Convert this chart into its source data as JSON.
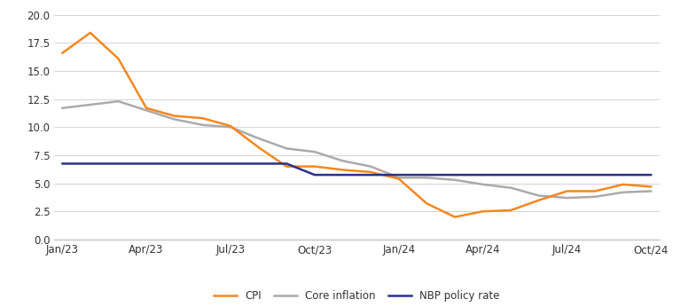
{
  "x_labels": [
    "Jan/23",
    "Apr/23",
    "Jul/23",
    "Oct/23",
    "Jan/24",
    "Apr/24",
    "Jul/24",
    "Oct/24"
  ],
  "x_ticks_pos": [
    0,
    3,
    6,
    9,
    12,
    15,
    18,
    21
  ],
  "cpi": {
    "x": [
      0,
      1,
      2,
      3,
      4,
      5,
      6,
      7,
      8,
      9,
      10,
      11,
      12,
      13,
      14,
      15,
      16,
      17,
      18,
      19,
      20,
      21
    ],
    "y": [
      16.6,
      18.4,
      16.1,
      11.7,
      11.0,
      10.8,
      10.1,
      8.2,
      6.5,
      6.5,
      6.2,
      6.0,
      5.4,
      3.2,
      2.0,
      2.5,
      2.6,
      3.5,
      4.3,
      4.3,
      4.9,
      4.7
    ],
    "color": "#F5871F",
    "label": "CPI",
    "linewidth": 1.8
  },
  "core": {
    "x": [
      0,
      1,
      2,
      3,
      4,
      5,
      6,
      7,
      8,
      9,
      10,
      11,
      12,
      13,
      14,
      15,
      16,
      17,
      18,
      19,
      20,
      21
    ],
    "y": [
      11.7,
      12.0,
      12.3,
      11.5,
      10.7,
      10.2,
      10.0,
      9.0,
      8.1,
      7.8,
      7.0,
      6.5,
      5.5,
      5.5,
      5.3,
      4.9,
      4.6,
      3.9,
      3.7,
      3.8,
      4.2,
      4.3
    ],
    "color": "#aaaaaa",
    "label": "Core inflation",
    "linewidth": 1.8
  },
  "nbp": {
    "x": [
      0,
      1,
      2,
      3,
      4,
      5,
      6,
      7,
      8,
      9,
      10,
      11,
      12,
      13,
      14,
      15,
      16,
      17,
      18,
      19,
      20,
      21
    ],
    "y": [
      6.75,
      6.75,
      6.75,
      6.75,
      6.75,
      6.75,
      6.75,
      6.75,
      6.75,
      5.75,
      5.75,
      5.75,
      5.75,
      5.75,
      5.75,
      5.75,
      5.75,
      5.75,
      5.75,
      5.75,
      5.75,
      5.75
    ],
    "color": "#2B2F8C",
    "label": "NBP policy rate",
    "linewidth": 1.8
  },
  "ylim": [
    0,
    20.5
  ],
  "yticks": [
    0.0,
    2.5,
    5.0,
    7.5,
    10.0,
    12.5,
    15.0,
    17.5,
    20.0
  ],
  "ytick_labels": [
    "0.0",
    "2.5",
    "5.0",
    "7.5",
    "10.0",
    "12.5",
    "15.0",
    "17.5",
    "20.0"
  ],
  "xlim": [
    -0.3,
    21.3
  ],
  "background_color": "#ffffff",
  "grid_color": "#cccccc",
  "legend_fontsize": 8.5,
  "tick_fontsize": 8.5
}
